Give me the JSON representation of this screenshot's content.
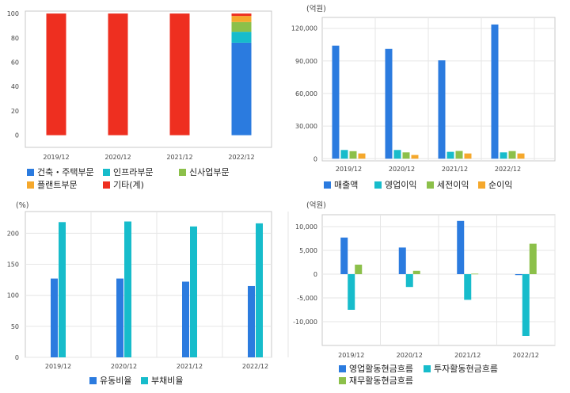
{
  "colors": {
    "red": "#ee2f20",
    "blue": "#2b7bdf",
    "teal": "#17bccb",
    "green": "#8cc04a",
    "orange": "#f5a82c",
    "grid": "#e6e6e6",
    "frame": "#c9c9c9"
  },
  "chart_data": [
    {
      "id": "segment-share",
      "type": "bar",
      "stacked": true,
      "unit": "",
      "categories": [
        "2019/12",
        "2020/12",
        "2021/12",
        "2022/12"
      ],
      "series": [
        {
          "name": "건축・주택부문",
          "color": "blue",
          "values": [
            0,
            0,
            0,
            76
          ]
        },
        {
          "name": "인프라부문",
          "color": "teal",
          "values": [
            0,
            0,
            0,
            9
          ]
        },
        {
          "name": "신사업부문",
          "color": "green",
          "values": [
            0,
            0,
            0,
            8
          ]
        },
        {
          "name": "플랜트부문",
          "color": "orange",
          "values": [
            0,
            0,
            0,
            5
          ]
        },
        {
          "name": "기타(계)",
          "color": "red",
          "values": [
            100,
            100,
            100,
            2
          ]
        }
      ],
      "yticks": [
        0,
        20,
        40,
        60,
        80,
        100
      ],
      "ylim": [
        -10,
        102
      ],
      "grid": false
    },
    {
      "id": "income",
      "type": "bar",
      "unit": "(억원)",
      "categories": [
        "2019/12",
        "2020/12",
        "2021/12",
        "2022/12"
      ],
      "series": [
        {
          "name": "매출액",
          "color": "blue",
          "values": [
            104000,
            101000,
            90500,
            123500
          ]
        },
        {
          "name": "영업이익",
          "color": "teal",
          "values": [
            8000,
            8000,
            6300,
            5800
          ]
        },
        {
          "name": "세전이익",
          "color": "green",
          "values": [
            6900,
            5800,
            7100,
            7000
          ]
        },
        {
          "name": "순이익",
          "color": "orange",
          "values": [
            4800,
            3400,
            4800,
            4800
          ]
        }
      ],
      "yticks": [
        0,
        30000,
        60000,
        90000,
        120000
      ],
      "ytick_labels": [
        "0",
        "30,000",
        "60,000",
        "90,000",
        "120,000"
      ],
      "ylim": [
        -2000,
        130000
      ],
      "grid": true
    },
    {
      "id": "ratios",
      "type": "bar",
      "unit": "(%)",
      "categories": [
        "2019/12",
        "2020/12",
        "2021/12",
        "2022/12"
      ],
      "series": [
        {
          "name": "유동비율",
          "color": "blue",
          "values": [
            127,
            127,
            122,
            115
          ]
        },
        {
          "name": "부채비율",
          "color": "teal",
          "values": [
            218,
            219,
            211,
            216
          ]
        }
      ],
      "yticks": [
        0,
        50,
        100,
        150,
        200
      ],
      "ylim": [
        0,
        235
      ],
      "grid": true
    },
    {
      "id": "cashflow",
      "type": "bar",
      "unit": "(억원)",
      "categories": [
        "2019/12",
        "2020/12",
        "2021/12",
        "2022/12"
      ],
      "series": [
        {
          "name": "영업활동현금흐름",
          "color": "blue",
          "values": [
            7700,
            5600,
            11200,
            -200
          ]
        },
        {
          "name": "투자활동현금흐름",
          "color": "teal",
          "values": [
            -7500,
            -2700,
            -5400,
            -13000
          ]
        },
        {
          "name": "재무활동현금흐름",
          "color": "green",
          "values": [
            2000,
            700,
            100,
            6400
          ]
        }
      ],
      "yticks": [
        -10000,
        -5000,
        0,
        5000,
        10000
      ],
      "ytick_labels": [
        "-10,000",
        "-5,000",
        "0",
        "5,000",
        "10,000"
      ],
      "ylim": [
        -15000,
        12500
      ],
      "grid": true
    }
  ]
}
